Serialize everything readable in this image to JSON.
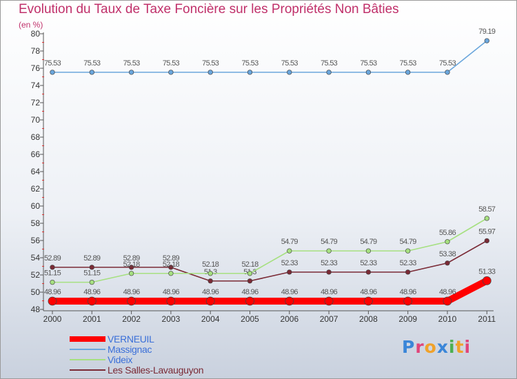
{
  "brand": {
    "name": "Proxiti",
    "colors": [
      "#3a86d8",
      "#e0457a",
      "#f0a22a",
      "#3a86d8",
      "#4caf50",
      "#f0a22a",
      "#e0457a"
    ]
  },
  "chart_data": {
    "type": "line",
    "title": "Evolution du Taux de Taxe Foncière sur les Propriétés Non Bâties",
    "ylabel": "(en %)",
    "xlabel": "",
    "ylim": [
      48,
      80
    ],
    "yticks": [
      48,
      50,
      52,
      54,
      56,
      58,
      60,
      62,
      64,
      66,
      68,
      70,
      72,
      74,
      76,
      78,
      80
    ],
    "categories": [
      "2000",
      "2001",
      "2002",
      "2003",
      "2004",
      "2005",
      "2006",
      "2007",
      "2008",
      "2009",
      "2010",
      "2011"
    ],
    "grid": false,
    "legend_position": "bottom-left",
    "series": [
      {
        "name": "VERNEUIL",
        "color": "#ff0000",
        "values": [
          48.96,
          48.96,
          48.96,
          48.96,
          48.96,
          48.96,
          48.96,
          48.96,
          48.96,
          48.96,
          48.96,
          51.33
        ],
        "labels": [
          "48.96",
          "48.96",
          "48.96",
          "48.96",
          "48.96",
          "48.96",
          "48.96",
          "48.96",
          "48.96",
          "48.96",
          "48.96",
          "51.33"
        ]
      },
      {
        "name": "Massignac",
        "color": "#6aa6dc",
        "values": [
          75.53,
          75.53,
          75.53,
          75.53,
          75.53,
          75.53,
          75.53,
          75.53,
          75.53,
          75.53,
          75.53,
          79.19
        ],
        "labels": [
          "75.53",
          "75.53",
          "75.53",
          "75.53",
          "75.53",
          "75.53",
          "75.53",
          "75.53",
          "75.53",
          "75.53",
          "75.53",
          "79.19"
        ]
      },
      {
        "name": "Videix",
        "color": "#a6e080",
        "values": [
          51.15,
          51.15,
          52.18,
          52.18,
          52.18,
          52.18,
          54.79,
          54.79,
          54.79,
          54.79,
          55.86,
          58.57
        ],
        "labels": [
          "51.15",
          "51.15",
          "52.18",
          "52.18",
          "52.18",
          "52.18",
          "54.79",
          "54.79",
          "54.79",
          "54.79",
          "55.86",
          "58.57"
        ]
      },
      {
        "name": "Les Salles-Lavauguyon",
        "color": "#7a2a35",
        "values": [
          52.89,
          52.89,
          52.89,
          52.89,
          51.3,
          51.3,
          52.33,
          52.33,
          52.33,
          52.33,
          53.38,
          55.97
        ],
        "labels": [
          "52.89",
          "52.89",
          "52.89",
          "52.89",
          "51.3",
          "51.3",
          "52.33",
          "52.33",
          "52.33",
          "52.33",
          "53.38",
          "55.97"
        ]
      }
    ]
  }
}
